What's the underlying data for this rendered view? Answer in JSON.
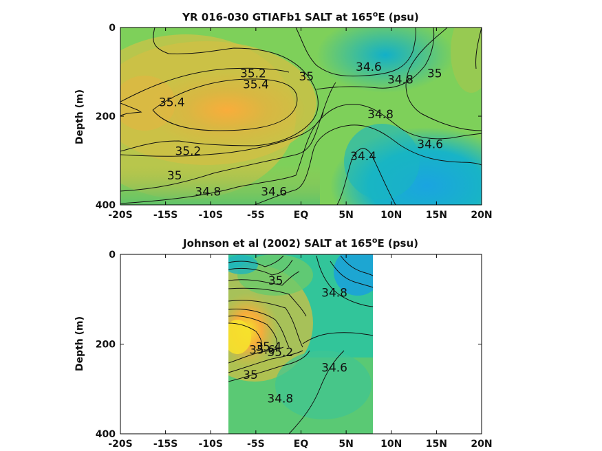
{
  "chart_data": [
    {
      "type": "heatmap",
      "title": "YR 016-030 GTIAFb1 SALT at 165",
      "title_sup": "o",
      "title_tail": "E (psu)",
      "xlabel": "",
      "ylabel": "Depth (m)",
      "xlim": [
        -20,
        20
      ],
      "ylim": [
        400,
        0
      ],
      "x_ticks": [
        -20,
        -15,
        -10,
        -5,
        0,
        5,
        10,
        15,
        20
      ],
      "x_tick_labels": [
        "-20S",
        "-15S",
        "-10S",
        "-5S",
        "EQ",
        "5N",
        "10N",
        "15N",
        "20N"
      ],
      "y_ticks": [
        0,
        200,
        400
      ],
      "y_tick_labels": [
        "0",
        "200",
        "400"
      ],
      "data_extent": [
        -20,
        20
      ],
      "grid": false,
      "contour_labels": [
        {
          "text": "35.2",
          "x": -5.3,
          "y": 103
        },
        {
          "text": "35.4",
          "x": -5.0,
          "y": 128
        },
        {
          "text": "35",
          "x": 0.6,
          "y": 110
        },
        {
          "text": "35.4",
          "x": -14.3,
          "y": 168
        },
        {
          "text": "34.6",
          "x": 7.5,
          "y": 88
        },
        {
          "text": "34.8",
          "x": 11.0,
          "y": 117
        },
        {
          "text": "35",
          "x": 14.8,
          "y": 103
        },
        {
          "text": "34.8",
          "x": 8.8,
          "y": 195
        },
        {
          "text": "34.6",
          "x": 14.3,
          "y": 263
        },
        {
          "text": "34.4",
          "x": 6.9,
          "y": 290
        },
        {
          "text": "35.2",
          "x": -12.5,
          "y": 278
        },
        {
          "text": "35",
          "x": -14.0,
          "y": 333
        },
        {
          "text": "34.8",
          "x": -10.3,
          "y": 370
        },
        {
          "text": "34.6",
          "x": -3.0,
          "y": 370
        }
      ]
    },
    {
      "type": "heatmap",
      "title": "Johnson et al (2002) SALT at 165",
      "title_sup": "o",
      "title_tail": "E (psu)",
      "xlabel": "",
      "ylabel": "Depth (m)",
      "xlim": [
        -20,
        20
      ],
      "ylim": [
        400,
        0
      ],
      "x_ticks": [
        -20,
        -15,
        -10,
        -5,
        0,
        5,
        10,
        15,
        20
      ],
      "x_tick_labels": [
        "-20S",
        "-15S",
        "-10S",
        "-5S",
        "EQ",
        "5N",
        "10N",
        "15N",
        "20N"
      ],
      "y_ticks": [
        0,
        200,
        400
      ],
      "y_tick_labels": [
        "0",
        "200",
        "400"
      ],
      "data_extent": [
        -8,
        8
      ],
      "grid": false,
      "contour_labels": [
        {
          "text": "35",
          "x": -2.8,
          "y": 58
        },
        {
          "text": "34.8",
          "x": 3.7,
          "y": 85
        },
        {
          "text": "35.6",
          "x": -4.3,
          "y": 212
        },
        {
          "text": "35.4",
          "x": -3.6,
          "y": 205
        },
        {
          "text": "35.2",
          "x": -2.3,
          "y": 218
        },
        {
          "text": "34.6",
          "x": 3.7,
          "y": 252
        },
        {
          "text": "35",
          "x": -5.6,
          "y": 268
        },
        {
          "text": "34.8",
          "x": -2.3,
          "y": 321
        }
      ]
    }
  ]
}
